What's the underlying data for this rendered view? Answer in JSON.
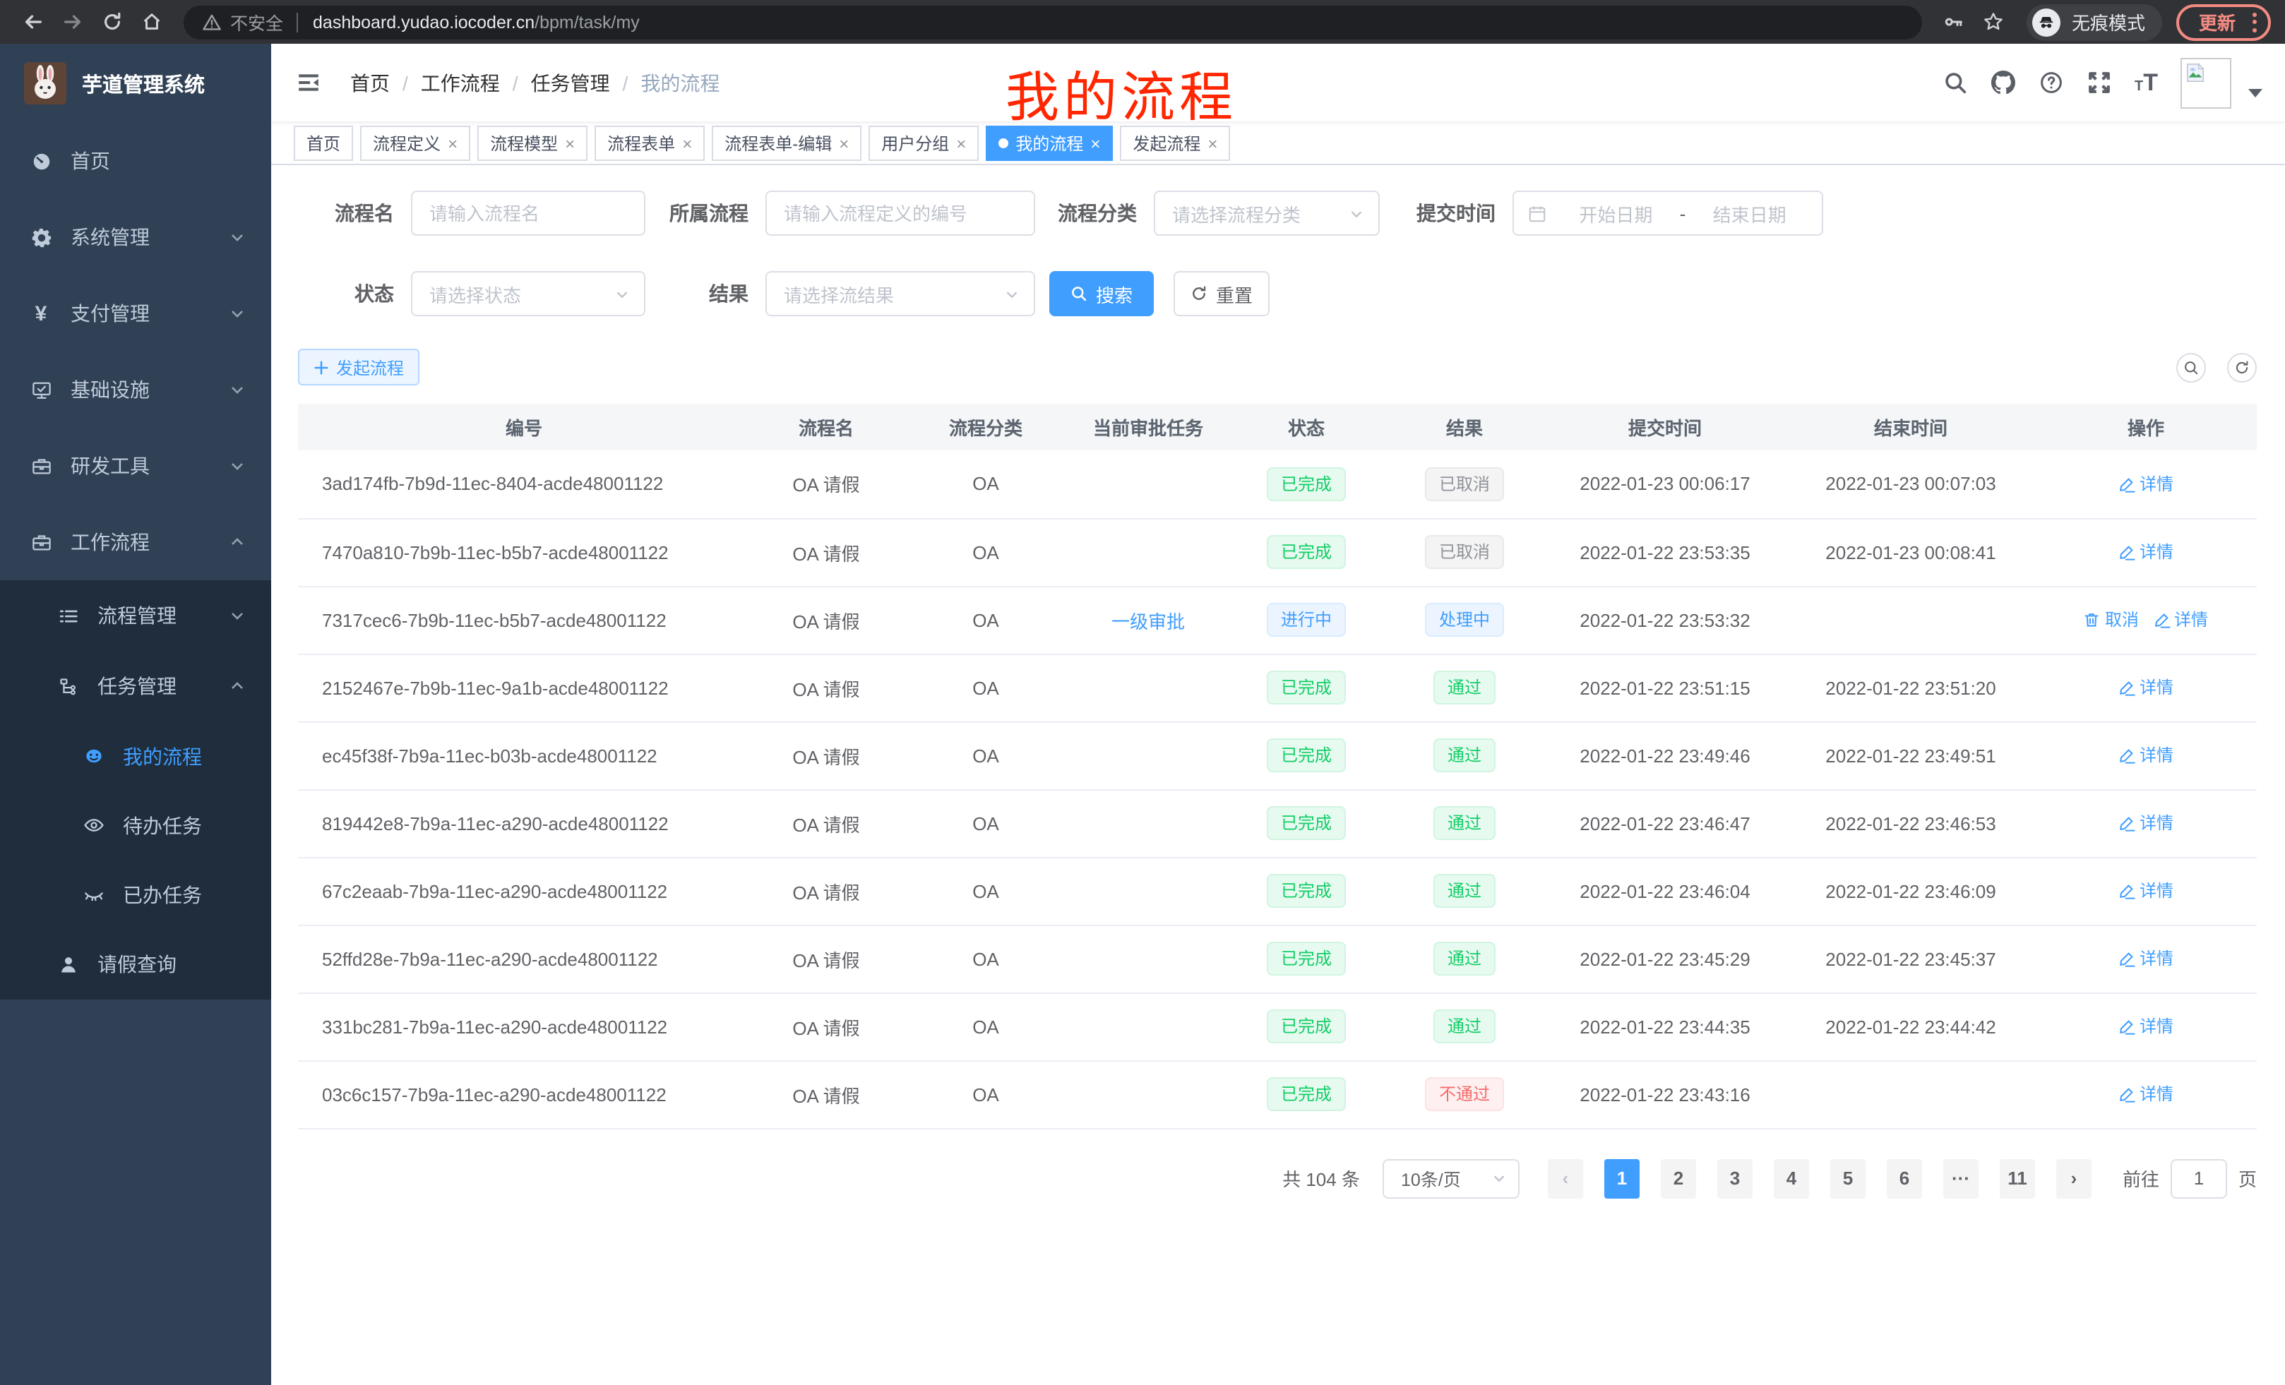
{
  "browser": {
    "security_label": "不安全",
    "url_host": "dashboard.yudao.iocoder.cn",
    "url_path": "/bpm/task/my",
    "incognito_label": "无痕模式",
    "update_label": "更新"
  },
  "annotation": {
    "title": "我的流程"
  },
  "sidebar": {
    "app_title": "芋道管理系统",
    "items": [
      {
        "key": "home",
        "label": "首页",
        "icon": "dashboard-icon",
        "level": 1,
        "chevron": null,
        "dark": false,
        "active": false
      },
      {
        "key": "system",
        "label": "系统管理",
        "icon": "gear-icon",
        "level": 1,
        "chevron": "down",
        "dark": false,
        "active": false
      },
      {
        "key": "payment",
        "label": "支付管理",
        "icon": "yen-icon",
        "level": 1,
        "chevron": "down",
        "dark": false,
        "active": false
      },
      {
        "key": "infrastructure",
        "label": "基础设施",
        "icon": "monitor-icon",
        "level": 1,
        "chevron": "down",
        "dark": false,
        "active": false
      },
      {
        "key": "dev-tools",
        "label": "研发工具",
        "icon": "toolbox-icon",
        "level": 1,
        "chevron": "down",
        "dark": false,
        "active": false
      },
      {
        "key": "workflow",
        "label": "工作流程",
        "icon": "toolbox-icon",
        "level": 1,
        "chevron": "up",
        "dark": false,
        "active": false
      },
      {
        "key": "process-mgmt",
        "label": "流程管理",
        "icon": "tree-icon",
        "level": 2,
        "chevron": "down",
        "dark": true,
        "active": false
      },
      {
        "key": "task-mgmt",
        "label": "任务管理",
        "icon": "flow-icon",
        "level": 2,
        "chevron": "up",
        "dark": true,
        "active": false
      },
      {
        "key": "my-process",
        "label": "我的流程",
        "icon": "face-icon",
        "level": 3,
        "chevron": null,
        "dark": true,
        "active": true
      },
      {
        "key": "todo-task",
        "label": "待办任务",
        "icon": "eye-icon",
        "level": 3,
        "chevron": null,
        "dark": true,
        "active": false
      },
      {
        "key": "done-task",
        "label": "已办任务",
        "icon": "eye-closed-icon",
        "level": 3,
        "chevron": null,
        "dark": true,
        "active": false
      },
      {
        "key": "leave-query",
        "label": "请假查询",
        "icon": "user-icon",
        "level": 2,
        "chevron": null,
        "dark": true,
        "active": false
      }
    ]
  },
  "header": {
    "breadcrumb": [
      {
        "label": "首页",
        "current": false
      },
      {
        "label": "工作流程",
        "current": false
      },
      {
        "label": "任务管理",
        "current": false
      },
      {
        "label": "我的流程",
        "current": true
      }
    ]
  },
  "tabs": [
    {
      "key": "home",
      "label": "首页",
      "closable": false,
      "active": false
    },
    {
      "key": "process-definition",
      "label": "流程定义",
      "closable": true,
      "active": false
    },
    {
      "key": "process-model",
      "label": "流程模型",
      "closable": true,
      "active": false
    },
    {
      "key": "process-form",
      "label": "流程表单",
      "closable": true,
      "active": false
    },
    {
      "key": "process-form-edit",
      "label": "流程表单-编辑",
      "closable": true,
      "active": false
    },
    {
      "key": "user-group",
      "label": "用户分组",
      "closable": true,
      "active": false
    },
    {
      "key": "my-process",
      "label": "我的流程",
      "closable": true,
      "active": true
    },
    {
      "key": "start-process",
      "label": "发起流程",
      "closable": true,
      "active": false
    }
  ],
  "filters": {
    "process_name": {
      "label": "流程名",
      "placeholder": "请输入流程名"
    },
    "process_def": {
      "label": "所属流程",
      "placeholder": "请输入流程定义的编号"
    },
    "category": {
      "label": "流程分类",
      "placeholder": "请选择流程分类"
    },
    "submit_time": {
      "label": "提交时间",
      "start_placeholder": "开始日期",
      "separator": "-",
      "end_placeholder": "结束日期"
    },
    "status": {
      "label": "状态",
      "placeholder": "请选择状态"
    },
    "result": {
      "label": "结果",
      "placeholder": "请选择流结果"
    },
    "search_label": "搜索",
    "reset_label": "重置"
  },
  "toolbar": {
    "start_process_label": "发起流程"
  },
  "table": {
    "headers": [
      "编号",
      "流程名",
      "流程分类",
      "当前审批任务",
      "状态",
      "结果",
      "提交时间",
      "结束时间",
      "操作"
    ],
    "rows": [
      {
        "id": "3ad174fb-7b9d-11ec-8404-acde48001122",
        "name": "OA 请假",
        "category": "OA",
        "task": "",
        "status": {
          "label": "已完成",
          "type": "success"
        },
        "result": {
          "label": "已取消",
          "type": "info"
        },
        "submit_time": "2022-01-23 00:06:17",
        "end_time": "2022-01-23 00:07:03",
        "actions": [
          {
            "label": "详情",
            "icon": "edit-icon"
          }
        ]
      },
      {
        "id": "7470a810-7b9b-11ec-b5b7-acde48001122",
        "name": "OA 请假",
        "category": "OA",
        "task": "",
        "status": {
          "label": "已完成",
          "type": "success"
        },
        "result": {
          "label": "已取消",
          "type": "info"
        },
        "submit_time": "2022-01-22 23:53:35",
        "end_time": "2022-01-23 00:08:41",
        "actions": [
          {
            "label": "详情",
            "icon": "edit-icon"
          }
        ]
      },
      {
        "id": "7317cec6-7b9b-11ec-b5b7-acde48001122",
        "name": "OA 请假",
        "category": "OA",
        "task": "一级审批",
        "status": {
          "label": "进行中",
          "type": "primary"
        },
        "result": {
          "label": "处理中",
          "type": "primary"
        },
        "submit_time": "2022-01-22 23:53:32",
        "end_time": "",
        "actions": [
          {
            "label": "取消",
            "icon": "delete-icon"
          },
          {
            "label": "详情",
            "icon": "edit-icon"
          }
        ]
      },
      {
        "id": "2152467e-7b9b-11ec-9a1b-acde48001122",
        "name": "OA 请假",
        "category": "OA",
        "task": "",
        "status": {
          "label": "已完成",
          "type": "success"
        },
        "result": {
          "label": "通过",
          "type": "success"
        },
        "submit_time": "2022-01-22 23:51:15",
        "end_time": "2022-01-22 23:51:20",
        "actions": [
          {
            "label": "详情",
            "icon": "edit-icon"
          }
        ]
      },
      {
        "id": "ec45f38f-7b9a-11ec-b03b-acde48001122",
        "name": "OA 请假",
        "category": "OA",
        "task": "",
        "status": {
          "label": "已完成",
          "type": "success"
        },
        "result": {
          "label": "通过",
          "type": "success"
        },
        "submit_time": "2022-01-22 23:49:46",
        "end_time": "2022-01-22 23:49:51",
        "actions": [
          {
            "label": "详情",
            "icon": "edit-icon"
          }
        ]
      },
      {
        "id": "819442e8-7b9a-11ec-a290-acde48001122",
        "name": "OA 请假",
        "category": "OA",
        "task": "",
        "status": {
          "label": "已完成",
          "type": "success"
        },
        "result": {
          "label": "通过",
          "type": "success"
        },
        "submit_time": "2022-01-22 23:46:47",
        "end_time": "2022-01-22 23:46:53",
        "actions": [
          {
            "label": "详情",
            "icon": "edit-icon"
          }
        ]
      },
      {
        "id": "67c2eaab-7b9a-11ec-a290-acde48001122",
        "name": "OA 请假",
        "category": "OA",
        "task": "",
        "status": {
          "label": "已完成",
          "type": "success"
        },
        "result": {
          "label": "通过",
          "type": "success"
        },
        "submit_time": "2022-01-22 23:46:04",
        "end_time": "2022-01-22 23:46:09",
        "actions": [
          {
            "label": "详情",
            "icon": "edit-icon"
          }
        ]
      },
      {
        "id": "52ffd28e-7b9a-11ec-a290-acde48001122",
        "name": "OA 请假",
        "category": "OA",
        "task": "",
        "status": {
          "label": "已完成",
          "type": "success"
        },
        "result": {
          "label": "通过",
          "type": "success"
        },
        "submit_time": "2022-01-22 23:45:29",
        "end_time": "2022-01-22 23:45:37",
        "actions": [
          {
            "label": "详情",
            "icon": "edit-icon"
          }
        ]
      },
      {
        "id": "331bc281-7b9a-11ec-a290-acde48001122",
        "name": "OA 请假",
        "category": "OA",
        "task": "",
        "status": {
          "label": "已完成",
          "type": "success"
        },
        "result": {
          "label": "通过",
          "type": "success"
        },
        "submit_time": "2022-01-22 23:44:35",
        "end_time": "2022-01-22 23:44:42",
        "actions": [
          {
            "label": "详情",
            "icon": "edit-icon"
          }
        ]
      },
      {
        "id": "03c6c157-7b9a-11ec-a290-acde48001122",
        "name": "OA 请假",
        "category": "OA",
        "task": "",
        "status": {
          "label": "已完成",
          "type": "success"
        },
        "result": {
          "label": "不通过",
          "type": "danger"
        },
        "submit_time": "2022-01-22 23:43:16",
        "end_time": "",
        "actions": [
          {
            "label": "详情",
            "icon": "edit-icon"
          }
        ]
      }
    ]
  },
  "pagination": {
    "total": "共 104 条",
    "page_size": "10条/页",
    "pages": [
      "1",
      "2",
      "3",
      "4",
      "5",
      "6",
      "···",
      "11"
    ],
    "active_page": "1",
    "goto_label": "前往",
    "goto_value": "1",
    "goto_unit": "页"
  },
  "colors": {
    "accent": "#409eff",
    "success": "#13ce66",
    "danger": "#f56c6c",
    "info": "#909399",
    "sidebar_bg": "#304156",
    "sidebar_submenu_bg": "#1f2d3d",
    "annotation_red": "#ff2600",
    "active_tag_blue_bg": "#ecf5ff",
    "success_tag_bg": "#e7faf0",
    "danger_tag_bg": "#fef0f0",
    "info_tag_bg": "#f4f4f5"
  }
}
